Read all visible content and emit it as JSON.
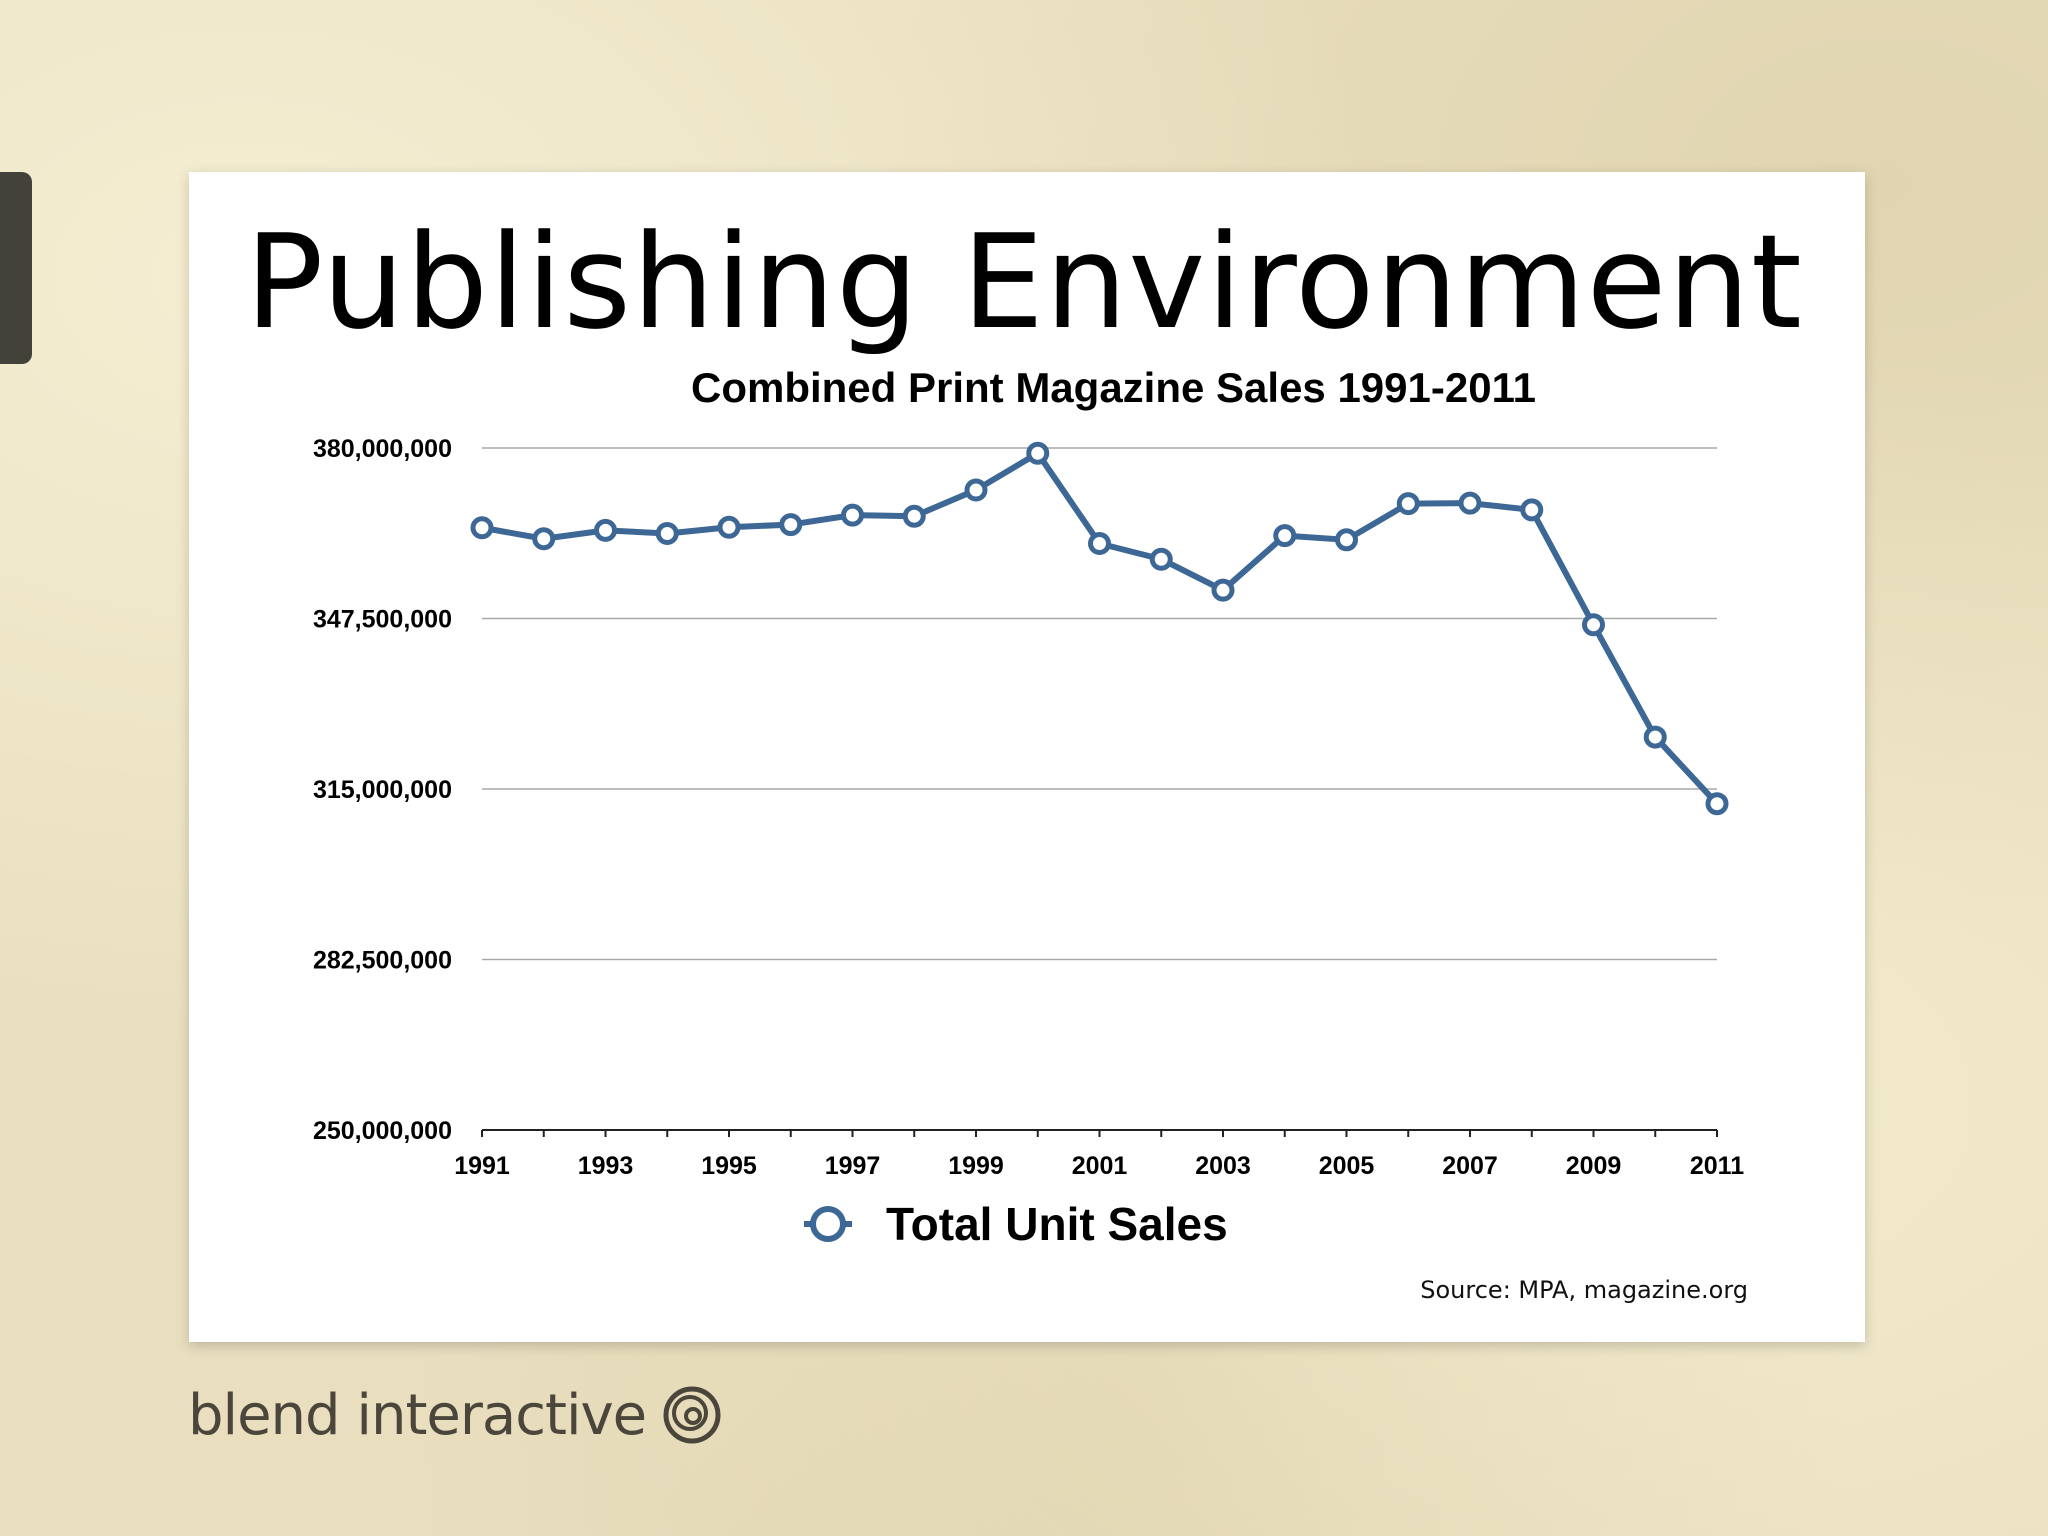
{
  "slide": {
    "title": "Publishing Environment",
    "source": "Source: MPA, magazine.org"
  },
  "brand": {
    "name": "blend interactive",
    "logo_icon": "spiral-logo-icon"
  },
  "chart_data": {
    "type": "line",
    "title": "Combined Print Magazine Sales 1991-2011",
    "xlabel": "",
    "ylabel": "",
    "x": [
      1991,
      1992,
      1993,
      1994,
      1995,
      1996,
      1997,
      1998,
      1999,
      2000,
      2001,
      2002,
      2003,
      2004,
      2005,
      2006,
      2007,
      2008,
      2009,
      2010,
      2011
    ],
    "xticks": [
      "1991",
      "1993",
      "1995",
      "1997",
      "1999",
      "2001",
      "2003",
      "2005",
      "2007",
      "2009",
      "2011"
    ],
    "yticks": [
      "380,000,000",
      "347,500,000",
      "315,000,000",
      "282,500,000",
      "250,000,000"
    ],
    "ytick_values": [
      380000000,
      347500000,
      315000000,
      282500000,
      250000000
    ],
    "ylim": [
      250000000,
      380000000
    ],
    "series": [
      {
        "name": "Total Unit Sales",
        "color": "#3d6795",
        "marker": "hollow-circle",
        "values": [
          364800000,
          362700000,
          364300000,
          363700000,
          364900000,
          365400000,
          367200000,
          367000000,
          372000000,
          379000000,
          361800000,
          358800000,
          352900000,
          363300000,
          362500000,
          369400000,
          369500000,
          368200000,
          346300000,
          324900000,
          312200000
        ]
      }
    ],
    "grid": "horizontal",
    "legend": "bottom-center"
  }
}
